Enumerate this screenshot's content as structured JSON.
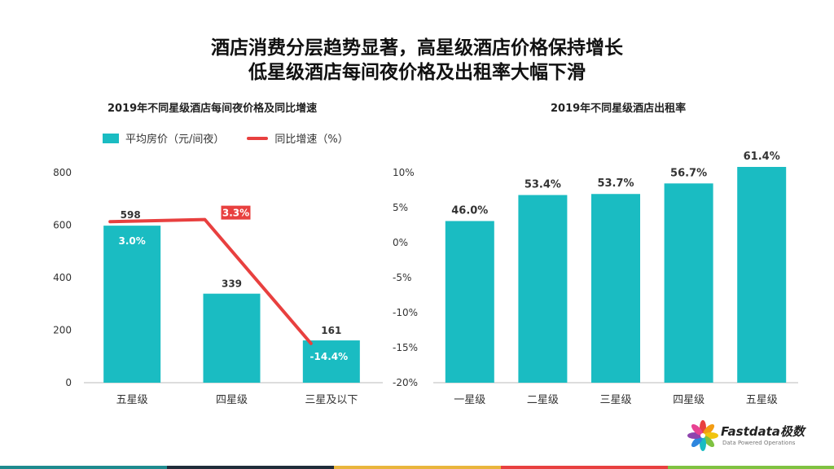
{
  "header": {
    "title_line1": "酒店消费分层趋势显著，高星级酒店价格保持增长",
    "title_line2": "低星级酒店每间夜价格及出租率大幅下滑"
  },
  "colors": {
    "bar": "#1ABCC2",
    "line": "#E8403F",
    "strip": [
      "#1E8A8E",
      "#1F2D3A",
      "#E9B53C",
      "#E8403F",
      "#7FC241"
    ]
  },
  "logo": {
    "brand": "Fastdata极数",
    "tagline": "Data Powered Operations"
  },
  "chart_data": [
    {
      "type": "bar",
      "title": "2019年不同星级酒店每间夜价格及同比增速",
      "legend_position": "top-left",
      "categories": [
        "五星级",
        "四星级",
        "三星及以下"
      ],
      "series": [
        {
          "name": "平均房价（元/间夜）",
          "type": "bar",
          "axis": "left",
          "values": [
            598,
            339,
            161
          ],
          "labels": [
            "598",
            "339",
            "161"
          ]
        },
        {
          "name": "同比增速（%）",
          "type": "line",
          "axis": "right",
          "values": [
            3.0,
            3.3,
            -14.4
          ],
          "labels": [
            "3.0%",
            "3.3%",
            "-14.4%"
          ]
        }
      ],
      "ylim": [
        0,
        800
      ],
      "yticks": [
        "0",
        "200",
        "400",
        "600",
        "800"
      ],
      "y2lim": [
        -20,
        10
      ],
      "y2ticks": [
        "10%",
        "5%",
        "0%",
        "-5%",
        "-10%",
        "-15%",
        "-20%"
      ],
      "grid": false
    },
    {
      "type": "bar",
      "title": "2019年不同星级酒店出租率",
      "categories": [
        "一星级",
        "二星级",
        "三星级",
        "四星级",
        "五星级"
      ],
      "values": [
        46.0,
        53.4,
        53.7,
        56.7,
        61.4
      ],
      "labels": [
        "46.0%",
        "53.4%",
        "53.7%",
        "56.7%",
        "61.4%"
      ],
      "grid": false
    }
  ]
}
